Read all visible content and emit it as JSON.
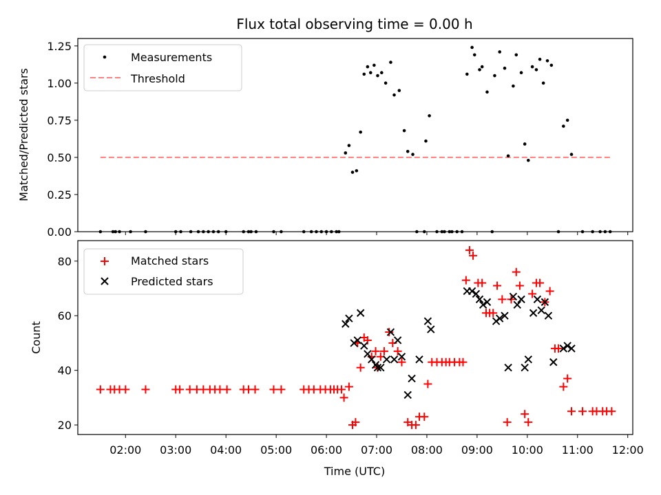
{
  "figure": {
    "title": "Flux total observing time = 0.00 h",
    "xlabel": "Time (UTC)",
    "x_ticks": [
      "02:00",
      "03:00",
      "04:00",
      "05:00",
      "06:00",
      "07:00",
      "08:00",
      "09:00",
      "10:00",
      "11:00",
      "12:00"
    ],
    "x_tick_hours": [
      2,
      3,
      4,
      5,
      6,
      7,
      8,
      9,
      10,
      11,
      12
    ],
    "xlim": [
      1.05,
      12.1
    ]
  },
  "chart_data": [
    {
      "type": "scatter",
      "ylabel": "Matched/Predicted stars",
      "ylim": [
        0,
        1.3
      ],
      "y_ticks": [
        "0.00",
        "0.25",
        "0.50",
        "0.75",
        "1.00",
        "1.25"
      ],
      "y_tick_values": [
        0,
        0.25,
        0.5,
        0.75,
        1.0,
        1.25
      ],
      "legend_position": "upper-left",
      "colors": {
        "measurements": "#000000",
        "threshold": "#ff7f7f"
      },
      "series": [
        {
          "name": "Measurements",
          "points": [
            [
              1.5,
              0
            ],
            [
              1.75,
              0
            ],
            [
              1.8,
              0
            ],
            [
              1.88,
              0
            ],
            [
              2.1,
              0
            ],
            [
              2.4,
              0
            ],
            [
              3.0,
              0
            ],
            [
              3.1,
              0
            ],
            [
              3.3,
              0
            ],
            [
              3.45,
              0
            ],
            [
              3.55,
              0
            ],
            [
              3.65,
              0
            ],
            [
              3.75,
              0
            ],
            [
              3.85,
              0
            ],
            [
              4.0,
              0
            ],
            [
              4.35,
              0
            ],
            [
              4.45,
              0
            ],
            [
              4.5,
              0
            ],
            [
              4.6,
              0
            ],
            [
              4.95,
              0
            ],
            [
              5.1,
              0
            ],
            [
              5.55,
              0
            ],
            [
              5.7,
              0
            ],
            [
              5.8,
              0
            ],
            [
              5.9,
              0
            ],
            [
              6.0,
              0
            ],
            [
              6.1,
              0
            ],
            [
              6.2,
              0
            ],
            [
              6.25,
              0
            ],
            [
              6.38,
              0.53
            ],
            [
              6.45,
              0.58
            ],
            [
              6.52,
              0.4
            ],
            [
              6.6,
              0.41
            ],
            [
              6.68,
              0.67
            ],
            [
              6.75,
              1.06
            ],
            [
              6.82,
              1.11
            ],
            [
              6.88,
              1.07
            ],
            [
              6.95,
              1.12
            ],
            [
              7.02,
              1.05
            ],
            [
              7.1,
              1.07
            ],
            [
              7.18,
              1.0
            ],
            [
              7.28,
              1.14
            ],
            [
              7.35,
              0.92
            ],
            [
              7.45,
              0.95
            ],
            [
              7.55,
              0.68
            ],
            [
              7.62,
              0.54
            ],
            [
              7.72,
              0.52
            ],
            [
              7.8,
              0
            ],
            [
              7.98,
              0.61
            ],
            [
              8.05,
              0.78
            ],
            [
              7.95,
              0
            ],
            [
              8.2,
              0
            ],
            [
              8.3,
              0
            ],
            [
              8.35,
              0
            ],
            [
              8.45,
              0
            ],
            [
              8.5,
              0
            ],
            [
              8.6,
              0
            ],
            [
              8.7,
              0
            ],
            [
              8.8,
              1.06
            ],
            [
              8.9,
              1.24
            ],
            [
              8.95,
              1.19
            ],
            [
              9.05,
              1.09
            ],
            [
              9.1,
              1.11
            ],
            [
              9.2,
              0.94
            ],
            [
              9.3,
              0
            ],
            [
              9.35,
              1.05
            ],
            [
              9.45,
              1.21
            ],
            [
              9.55,
              1.1
            ],
            [
              9.62,
              0.51
            ],
            [
              9.72,
              0.98
            ],
            [
              9.78,
              1.19
            ],
            [
              9.88,
              1.07
            ],
            [
              9.95,
              0.59
            ],
            [
              10.02,
              0.48
            ],
            [
              10.1,
              1.11
            ],
            [
              10.18,
              1.09
            ],
            [
              10.25,
              1.16
            ],
            [
              10.32,
              1.0
            ],
            [
              10.4,
              1.15
            ],
            [
              10.48,
              1.12
            ],
            [
              10.62,
              0
            ],
            [
              10.72,
              0.71
            ],
            [
              10.8,
              0.75
            ],
            [
              10.88,
              0.52
            ],
            [
              11.1,
              0
            ],
            [
              11.3,
              0
            ],
            [
              11.45,
              0
            ],
            [
              11.55,
              0
            ],
            [
              11.65,
              0
            ]
          ]
        },
        {
          "name": "Threshold",
          "style": "dashed",
          "points": [
            [
              1.5,
              0.5
            ],
            [
              11.65,
              0.5
            ]
          ]
        }
      ]
    },
    {
      "type": "scatter",
      "ylabel": "Count",
      "ylim": [
        16.5,
        87.5
      ],
      "y_ticks": [
        "20",
        "40",
        "60",
        "80"
      ],
      "y_tick_values": [
        20,
        40,
        60,
        80
      ],
      "legend_position": "upper-left",
      "colors": {
        "matched": "#ff0000",
        "predicted": "#000000"
      },
      "series": [
        {
          "name": "Matched stars",
          "marker": "plus",
          "points": [
            [
              1.5,
              33
            ],
            [
              1.7,
              33
            ],
            [
              1.78,
              33
            ],
            [
              1.88,
              33
            ],
            [
              2.0,
              33
            ],
            [
              2.4,
              33
            ],
            [
              3.0,
              33
            ],
            [
              3.08,
              33
            ],
            [
              3.28,
              33
            ],
            [
              3.42,
              33
            ],
            [
              3.55,
              33
            ],
            [
              3.68,
              33
            ],
            [
              3.78,
              33
            ],
            [
              3.88,
              33
            ],
            [
              4.02,
              33
            ],
            [
              4.35,
              33
            ],
            [
              4.45,
              33
            ],
            [
              4.58,
              33
            ],
            [
              4.95,
              33
            ],
            [
              5.1,
              33
            ],
            [
              5.55,
              33
            ],
            [
              5.65,
              33
            ],
            [
              5.75,
              33
            ],
            [
              5.88,
              33
            ],
            [
              5.98,
              33
            ],
            [
              6.08,
              33
            ],
            [
              6.15,
              33
            ],
            [
              6.22,
              33
            ],
            [
              6.3,
              33
            ],
            [
              6.35,
              30
            ],
            [
              6.45,
              34
            ],
            [
              6.52,
              20
            ],
            [
              6.58,
              21
            ],
            [
              6.62,
              50
            ],
            [
              6.68,
              41
            ],
            [
              6.75,
              52
            ],
            [
              6.82,
              51
            ],
            [
              6.9,
              45
            ],
            [
              6.98,
              47
            ],
            [
              7.02,
              41
            ],
            [
              7.08,
              45
            ],
            [
              7.15,
              47
            ],
            [
              7.25,
              54
            ],
            [
              7.32,
              50
            ],
            [
              7.42,
              47
            ],
            [
              7.5,
              43
            ],
            [
              7.62,
              21
            ],
            [
              7.7,
              20
            ],
            [
              7.78,
              20
            ],
            [
              7.85,
              23
            ],
            [
              7.95,
              23
            ],
            [
              8.02,
              35
            ],
            [
              8.1,
              43
            ],
            [
              8.2,
              43
            ],
            [
              8.3,
              43
            ],
            [
              8.38,
              43
            ],
            [
              8.45,
              43
            ],
            [
              8.55,
              43
            ],
            [
              8.65,
              43
            ],
            [
              8.72,
              43
            ],
            [
              8.78,
              73
            ],
            [
              8.85,
              84
            ],
            [
              8.92,
              82
            ],
            [
              9.02,
              72
            ],
            [
              9.1,
              72
            ],
            [
              9.18,
              61
            ],
            [
              9.25,
              61
            ],
            [
              9.32,
              61
            ],
            [
              9.4,
              71
            ],
            [
              9.5,
              66
            ],
            [
              9.6,
              21
            ],
            [
              9.68,
              66
            ],
            [
              9.78,
              76
            ],
            [
              9.85,
              71
            ],
            [
              9.95,
              24
            ],
            [
              10.02,
              21
            ],
            [
              10.1,
              68
            ],
            [
              10.18,
              72
            ],
            [
              10.25,
              72
            ],
            [
              10.35,
              65
            ],
            [
              10.45,
              69
            ],
            [
              10.55,
              48
            ],
            [
              10.62,
              48
            ],
            [
              10.72,
              34
            ],
            [
              10.8,
              37
            ],
            [
              10.88,
              25
            ],
            [
              11.1,
              25
            ],
            [
              11.3,
              25
            ],
            [
              11.38,
              25
            ],
            [
              11.5,
              25
            ],
            [
              11.58,
              25
            ],
            [
              11.68,
              25
            ]
          ]
        },
        {
          "name": "Predicted stars",
          "marker": "x",
          "points": [
            [
              6.38,
              57
            ],
            [
              6.45,
              59
            ],
            [
              6.55,
              50
            ],
            [
              6.62,
              51
            ],
            [
              6.68,
              61
            ],
            [
              6.75,
              49
            ],
            [
              6.82,
              46
            ],
            [
              6.9,
              44
            ],
            [
              6.98,
              42
            ],
            [
              7.02,
              41
            ],
            [
              7.08,
              41
            ],
            [
              7.2,
              44
            ],
            [
              7.28,
              54
            ],
            [
              7.35,
              44
            ],
            [
              7.42,
              51
            ],
            [
              7.5,
              45
            ],
            [
              7.62,
              31
            ],
            [
              7.7,
              37
            ],
            [
              7.85,
              44
            ],
            [
              8.02,
              58
            ],
            [
              8.08,
              55
            ],
            [
              8.8,
              69
            ],
            [
              8.9,
              69
            ],
            [
              8.98,
              68
            ],
            [
              9.05,
              66
            ],
            [
              9.12,
              64
            ],
            [
              9.2,
              65
            ],
            [
              9.38,
              58
            ],
            [
              9.45,
              59
            ],
            [
              9.55,
              60
            ],
            [
              9.62,
              41
            ],
            [
              9.72,
              67
            ],
            [
              9.8,
              64
            ],
            [
              9.88,
              66
            ],
            [
              9.95,
              41
            ],
            [
              10.02,
              44
            ],
            [
              10.12,
              61
            ],
            [
              10.2,
              66
            ],
            [
              10.28,
              62
            ],
            [
              10.35,
              65
            ],
            [
              10.42,
              60
            ],
            [
              10.52,
              43
            ],
            [
              10.72,
              48
            ],
            [
              10.8,
              49
            ],
            [
              10.88,
              48
            ]
          ]
        }
      ]
    }
  ]
}
